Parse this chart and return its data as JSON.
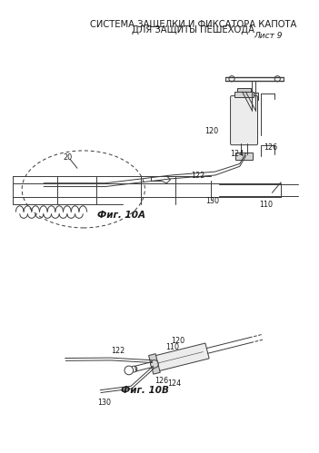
{
  "title_line1": "СИСТЕМА ЗАЩЕЛКИ И ФИКСАТОРА КАПОТА",
  "title_line2": "ДЛЯ ЗАЩИТЫ ПЕШЕХОДА",
  "sheet": "Лист 9",
  "fig_a_label": "Фиг. 10А",
  "fig_b_label": "Фиг. 10В",
  "bg_color": "#ffffff",
  "line_color": "#3a3a3a",
  "label_color": "#1a1a1a",
  "title_fontsize": 7.2,
  "sheet_fontsize": 6.5,
  "label_fontsize": 5.8,
  "fig_label_fontsize": 7.5
}
